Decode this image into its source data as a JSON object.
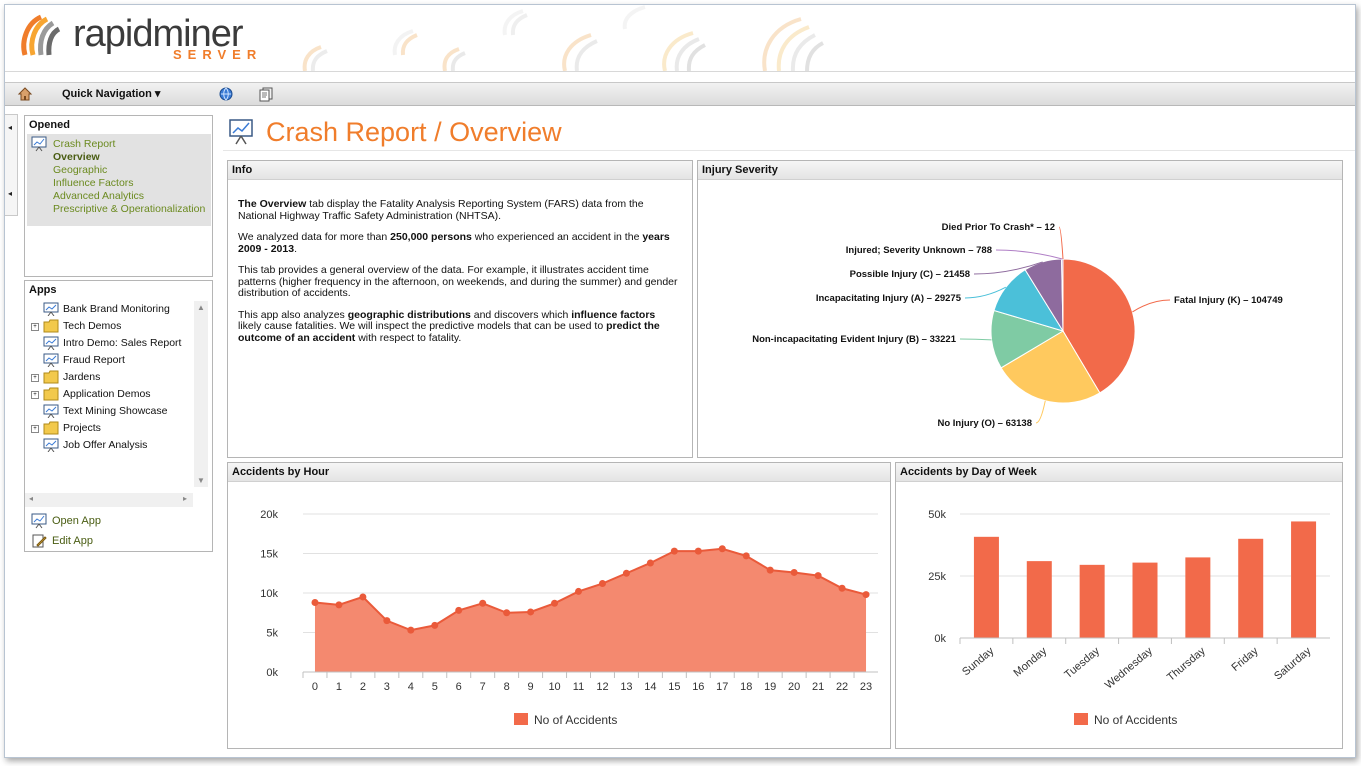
{
  "header": {
    "logo_text": "rapidminer",
    "logo_sub": "SERVER"
  },
  "toolbar": {
    "quick_nav_label": "Quick Navigation ▾"
  },
  "sidebar": {
    "opened_title": "Opened",
    "opened_items": [
      "Crash Report",
      "Overview",
      "Geographic",
      "Influence Factors",
      "Advanced Analytics",
      "Prescriptive & Operationalization"
    ],
    "apps_title": "Apps",
    "apps": [
      {
        "label": "Bank Brand Monitoring",
        "icon": "report-icon",
        "expandable": false
      },
      {
        "label": "Tech Demos",
        "icon": "folder-icon",
        "expandable": true
      },
      {
        "label": "Intro Demo: Sales Report",
        "icon": "report-icon",
        "expandable": false
      },
      {
        "label": "Fraud Report",
        "icon": "report-icon",
        "expandable": false
      },
      {
        "label": "Jardens",
        "icon": "folder-icon",
        "expandable": true
      },
      {
        "label": "Application Demos",
        "icon": "folder-icon",
        "expandable": true
      },
      {
        "label": "Text Mining Showcase",
        "icon": "report-icon",
        "expandable": false
      },
      {
        "label": "Projects",
        "icon": "folder-icon",
        "expandable": true
      },
      {
        "label": "Job Offer Analysis",
        "icon": "report-icon",
        "expandable": false
      }
    ],
    "open_app_label": "Open App",
    "edit_app_label": "Edit App"
  },
  "main": {
    "title": "Crash Report / Overview",
    "info": {
      "title": "Info",
      "p1_bold": "The Overview",
      "p1_text": " tab display the Fatality Analysis Reporting System (FARS) data from the National Highway Traffic Safety Administration (NHTSA).",
      "p2_text": "We analyzed data for more than ",
      "p2_bold1": "250,000 persons",
      "p2_text2": " who experienced an accident in the ",
      "p2_bold2": "years 2009 - 2013",
      "p2_text3": ".",
      "p3_text": "This tab provides a general overview of the data.  For example, it illustrates accident time patterns (higher frequency in the afternoon, on weekends, and during the summer) and gender distribution of accidents.",
      "p4_text": "This app also analyzes ",
      "p4_bold1": "geographic distributions",
      "p4_text2": " and discovers which ",
      "p4_bold2": "influence factors",
      "p4_text3": " likely cause fatalities.  We will inspect the predictive models that can be used to ",
      "p4_bold3": "predict the outcome of an accident",
      "p4_text4": " with respect to fatality."
    },
    "injury_title": "Injury Severity",
    "hour_title": "Accidents by Hour",
    "day_title": "Accidents by Day of Week"
  },
  "colors": {
    "accent": "#f07d2b",
    "bar": "#f26a4a",
    "area": "#f4896f",
    "link": "#6b8a1f"
  },
  "chart_data": [
    {
      "type": "pie",
      "title": "Injury Severity",
      "slices": [
        {
          "label": "Fatal Injury (K)",
          "value": 104749,
          "color": "#f26a4a"
        },
        {
          "label": "No Injury (O)",
          "value": 63138,
          "color": "#ffc95e"
        },
        {
          "label": "Non-incapacitating Evident Injury (B)",
          "value": 33221,
          "color": "#7fcba4"
        },
        {
          "label": "Incapacitating Injury (A)",
          "value": 29275,
          "color": "#4bc0d9"
        },
        {
          "label": "Possible Injury (C)",
          "value": 21458,
          "color": "#8e6b9e"
        },
        {
          "label": "Injured, Severity Unknown",
          "value": 788,
          "color": "#b07fc6"
        },
        {
          "label": "Died Prior To Crash*",
          "value": 12,
          "color": "#f26a4a"
        }
      ],
      "display_labels": [
        "Fatal Injury (K) – 104749",
        "No Injury (O) – 63138",
        "Non-incapacitating Evident Injury (B) – 33221",
        "Incapacitating Injury (A) – 29275",
        "Possible Injury (C) – 21458",
        "Injured; Severity Unknown – 788",
        "Died Prior To Crash* – 12"
      ]
    },
    {
      "type": "area",
      "title": "Accidents by Hour",
      "categories": [
        "0",
        "1",
        "2",
        "3",
        "4",
        "5",
        "6",
        "7",
        "8",
        "9",
        "10",
        "11",
        "12",
        "13",
        "14",
        "15",
        "16",
        "17",
        "18",
        "19",
        "20",
        "21",
        "22",
        "23"
      ],
      "series": [
        {
          "name": "No of Accidents",
          "values": [
            8800,
            8500,
            9500,
            6500,
            5300,
            5900,
            7800,
            8700,
            7500,
            7600,
            8700,
            10200,
            11200,
            12500,
            13800,
            15300,
            15300,
            15600,
            14700,
            12900,
            12600,
            12200,
            10600,
            9800
          ]
        }
      ],
      "ylim": [
        0,
        20000
      ],
      "yticks": [
        "0k",
        "5k",
        "10k",
        "15k",
        "20k"
      ],
      "ytick_values": [
        0,
        5000,
        10000,
        15000,
        20000
      ]
    },
    {
      "type": "bar",
      "title": "Accidents by Day of Week",
      "categories": [
        "Sunday",
        "Monday",
        "Tuesday",
        "Wednesday",
        "Thursday",
        "Friday",
        "Saturday"
      ],
      "series": [
        {
          "name": "No of Accidents",
          "values": [
            40800,
            31000,
            29500,
            30400,
            32500,
            40000,
            47000
          ]
        }
      ],
      "ylim": [
        0,
        50000
      ],
      "yticks": [
        "0k",
        "25k",
        "50k"
      ],
      "ytick_values": [
        0,
        25000,
        50000
      ]
    }
  ]
}
